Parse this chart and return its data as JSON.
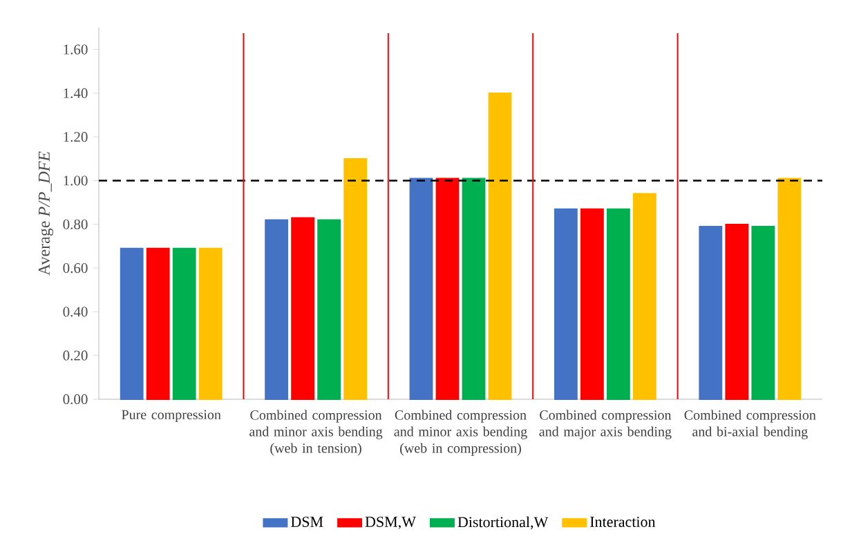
{
  "chart_data": {
    "type": "bar",
    "ylabel": "Average *P/P_DFE*",
    "categories": [
      "Pure compression",
      "Combined compression and minor axis bending (web in tension)",
      "Combined compression and minor axis bending (web in compression)",
      "Combined compression and major axis bending",
      "Combined compression and bi-axial bending"
    ],
    "series": [
      {
        "name": "DSM",
        "color": "#4472c4",
        "values": [
          0.69,
          0.82,
          1.01,
          0.87,
          0.79
        ]
      },
      {
        "name": "DSM,W",
        "color": "#ff0000",
        "values": [
          0.69,
          0.83,
          1.01,
          0.87,
          0.8
        ]
      },
      {
        "name": "Distortional,W",
        "color": "#00b050",
        "values": [
          0.69,
          0.82,
          1.01,
          0.87,
          0.79
        ]
      },
      {
        "name": "Interaction",
        "color": "#ffc000",
        "values": [
          0.69,
          1.1,
          1.4,
          0.94,
          1.01
        ]
      }
    ],
    "ylim": [
      0,
      1.7
    ],
    "yticks": [
      {
        "value": 0,
        "label": "0.00"
      },
      {
        "value": 0.2,
        "label": "0.20"
      },
      {
        "value": 0.4,
        "label": "0.40"
      },
      {
        "value": 0.6,
        "label": "0.60"
      },
      {
        "value": 0.8,
        "label": "0.80"
      },
      {
        "value": 1.0,
        "label": "1.00"
      },
      {
        "value": 1.2,
        "label": "1.20"
      },
      {
        "value": 1.4,
        "label": "1.40"
      },
      {
        "value": 1.6,
        "label": "1.60"
      }
    ],
    "ref_lines": [
      {
        "axis": "y",
        "value": 1.0,
        "color": "#000000",
        "line_style": "dashed"
      }
    ],
    "legend": "bottom"
  }
}
